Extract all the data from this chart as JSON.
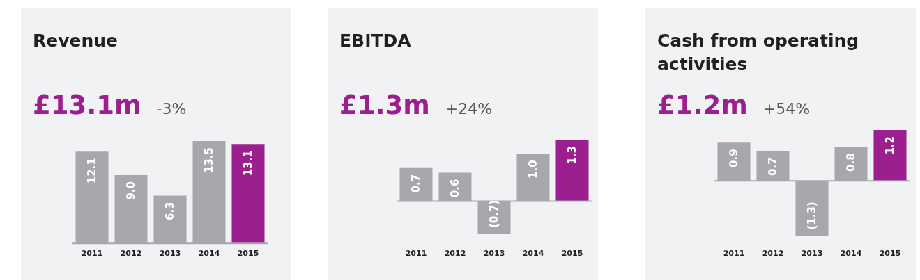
{
  "chart_data": [
    {
      "type": "bar",
      "title": "Revenue",
      "subtitle": "£13.1m",
      "annotations": [
        "-3%"
      ],
      "categories": [
        "2011",
        "2012",
        "2013",
        "2014",
        "2015"
      ],
      "values": [
        12.1,
        9.0,
        6.3,
        13.5,
        13.1
      ],
      "colors": [
        "#a7a8ab",
        "#a7a8ab",
        "#a7a8ab",
        "#a7a8ab",
        "#9b1f8e"
      ],
      "value_labels": [
        "12.1",
        "9.0",
        "6.3",
        "13.5",
        "13.1"
      ]
    },
    {
      "type": "bar",
      "title": "EBITDA",
      "subtitle": "£1.3m",
      "annotations": [
        "+24%"
      ],
      "categories": [
        "2011",
        "2012",
        "2013",
        "2014",
        "2015"
      ],
      "values": [
        0.7,
        0.6,
        -0.7,
        1.0,
        1.3
      ],
      "colors": [
        "#a7a8ab",
        "#a7a8ab",
        "#a7a8ab",
        "#a7a8ab",
        "#9b1f8e"
      ],
      "value_labels": [
        "0.7",
        "0.6",
        "(0.7)",
        "1.0",
        "1.3"
      ]
    },
    {
      "type": "bar",
      "title": "Cash from operating activities",
      "subtitle": "£1.2m",
      "annotations": [
        "+54%"
      ],
      "categories": [
        "2011",
        "2012",
        "2013",
        "2014",
        "2015"
      ],
      "values": [
        0.9,
        0.7,
        -1.3,
        0.8,
        1.2
      ],
      "colors": [
        "#a7a8ab",
        "#a7a8ab",
        "#a7a8ab",
        "#a7a8ab",
        "#9b1f8e"
      ],
      "value_labels": [
        "0.9",
        "0.7",
        "(1.3)",
        "0.8",
        "1.2"
      ]
    }
  ]
}
